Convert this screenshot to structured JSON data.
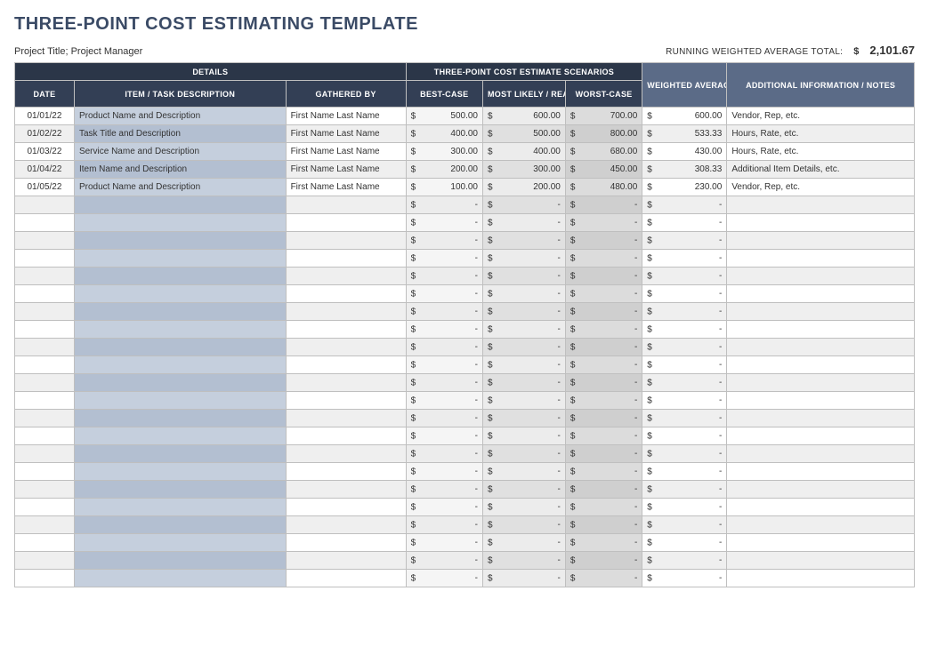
{
  "title": "THREE-POINT COST ESTIMATING TEMPLATE",
  "subtitle": "Project Title; Project Manager",
  "running_total_label": "RUNNING WEIGHTED AVERAGE TOTAL:",
  "currency_symbol": "$",
  "running_total_value": "2,101.67",
  "headers": {
    "details": "DETAILS",
    "scenarios": "THREE-POINT COST ESTIMATE SCENARIOS",
    "weighted_average": "WEIGHTED AVERAGE",
    "notes": "ADDITIONAL INFORMATION / NOTES",
    "date": "DATE",
    "item": "ITEM / TASK DESCRIPTION",
    "gathered_by": "GATHERED BY",
    "best": "BEST-CASE",
    "most": "MOST LIKELY / REALISTIC",
    "worst": "WORST-CASE"
  },
  "total_rows": 27,
  "empty_money_placeholder": "-",
  "rows": [
    {
      "date": "01/01/22",
      "item": "Product Name and Description",
      "gathered": "First Name Last Name",
      "best": "500.00",
      "most": "600.00",
      "worst": "700.00",
      "wavg": "600.00",
      "notes": "Vendor, Rep, etc."
    },
    {
      "date": "01/02/22",
      "item": "Task Title and Description",
      "gathered": "First Name Last Name",
      "best": "400.00",
      "most": "500.00",
      "worst": "800.00",
      "wavg": "533.33",
      "notes": "Hours, Rate, etc."
    },
    {
      "date": "01/03/22",
      "item": "Service Name and Description",
      "gathered": "First Name Last Name",
      "best": "300.00",
      "most": "400.00",
      "worst": "680.00",
      "wavg": "430.00",
      "notes": "Hours, Rate, etc."
    },
    {
      "date": "01/04/22",
      "item": "Item Name and Description",
      "gathered": "First Name Last Name",
      "best": "200.00",
      "most": "300.00",
      "worst": "450.00",
      "wavg": "308.33",
      "notes": "Additional Item Details, etc."
    },
    {
      "date": "01/05/22",
      "item": "Product Name and Description",
      "gathered": "First Name Last Name",
      "best": "100.00",
      "most": "200.00",
      "worst": "480.00",
      "wavg": "230.00",
      "notes": "Vendor, Rep, etc."
    }
  ],
  "colors": {
    "title_color": "#3b4b66",
    "hdr_dark": "#2b3648",
    "hdr_slate": "#5b6b87",
    "hdr_sub": "#333f55",
    "desc_bg": "#c5cfdd",
    "desc_bg_alt": "#b3bfd1",
    "best_bg": "#f5f5f5",
    "most_bg": "#ececec",
    "worst_bg": "#dcdcdc",
    "border": "#bfbfbf"
  }
}
